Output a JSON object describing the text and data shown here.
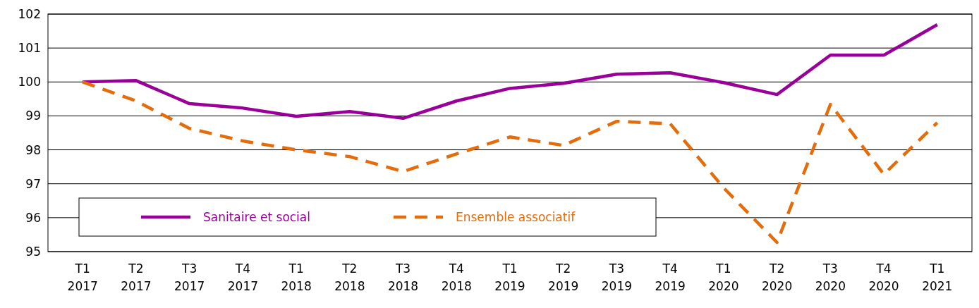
{
  "chart_data": {
    "type": "line",
    "categories": [
      "T1 2017",
      "T2 2017",
      "T3 2017",
      "T4 2017",
      "T1 2018",
      "T2 2018",
      "T3 2018",
      "T4 2018",
      "T1 2019",
      "T2 2019",
      "T3 2019",
      "T4 2019",
      "T1 2020",
      "T2 2020",
      "T3 2020",
      "T4 2020",
      "T1 2021"
    ],
    "series": [
      {
        "name": "Sanitaire et social",
        "color": "#990099",
        "line_style": "solid",
        "values": [
          100.0,
          100.04,
          99.36,
          99.23,
          98.99,
          99.13,
          98.93,
          99.44,
          99.81,
          99.96,
          100.23,
          100.27,
          99.98,
          99.63,
          100.79,
          100.79,
          101.69
        ]
      },
      {
        "name": "Ensemble associatif",
        "color": "#e46c0a",
        "line_style": "dashed",
        "values": [
          100.0,
          99.44,
          98.63,
          98.26,
          98.0,
          97.8,
          97.36,
          97.88,
          98.38,
          98.13,
          98.84,
          98.77,
          96.88,
          95.27,
          99.34,
          97.28,
          98.8
        ]
      }
    ],
    "ylim": [
      95,
      102
    ],
    "yticks": [
      95,
      96,
      97,
      98,
      99,
      100,
      101,
      102
    ],
    "grid": "y",
    "legend": "bottom left",
    "marker": "none"
  }
}
